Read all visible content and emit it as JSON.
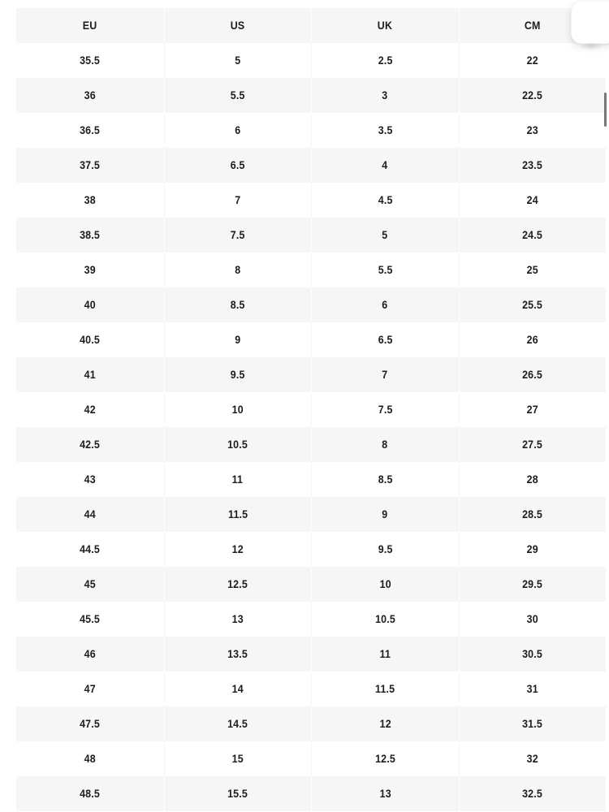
{
  "table": {
    "columns": [
      "EU",
      "US",
      "UK",
      "CM"
    ],
    "rows": [
      [
        "35.5",
        "5",
        "2.5",
        "22"
      ],
      [
        "36",
        "5.5",
        "3",
        "22.5"
      ],
      [
        "36.5",
        "6",
        "3.5",
        "23"
      ],
      [
        "37.5",
        "6.5",
        "4",
        "23.5"
      ],
      [
        "38",
        "7",
        "4.5",
        "24"
      ],
      [
        "38.5",
        "7.5",
        "5",
        "24.5"
      ],
      [
        "39",
        "8",
        "5.5",
        "25"
      ],
      [
        "40",
        "8.5",
        "6",
        "25.5"
      ],
      [
        "40.5",
        "9",
        "6.5",
        "26"
      ],
      [
        "41",
        "9.5",
        "7",
        "26.5"
      ],
      [
        "42",
        "10",
        "7.5",
        "27"
      ],
      [
        "42.5",
        "10.5",
        "8",
        "27.5"
      ],
      [
        "43",
        "11",
        "8.5",
        "28"
      ],
      [
        "44",
        "11.5",
        "9",
        "28.5"
      ],
      [
        "44.5",
        "12",
        "9.5",
        "29"
      ],
      [
        "45",
        "12.5",
        "10",
        "29.5"
      ],
      [
        "45.5",
        "13",
        "10.5",
        "30"
      ],
      [
        "46",
        "13.5",
        "11",
        "30.5"
      ],
      [
        "47",
        "14",
        "11.5",
        "31"
      ],
      [
        "47.5",
        "14.5",
        "12",
        "31.5"
      ],
      [
        "48",
        "15",
        "12.5",
        "32"
      ],
      [
        "48.5",
        "15.5",
        "13",
        "32.5"
      ]
    ]
  },
  "colors": {
    "header_bg": "#f6f6f7",
    "row_alt_bg": "#f6f6f7",
    "row_bg": "#ffffff",
    "text": "#1c1c1c",
    "scrollbar_thumb": "#777777"
  }
}
